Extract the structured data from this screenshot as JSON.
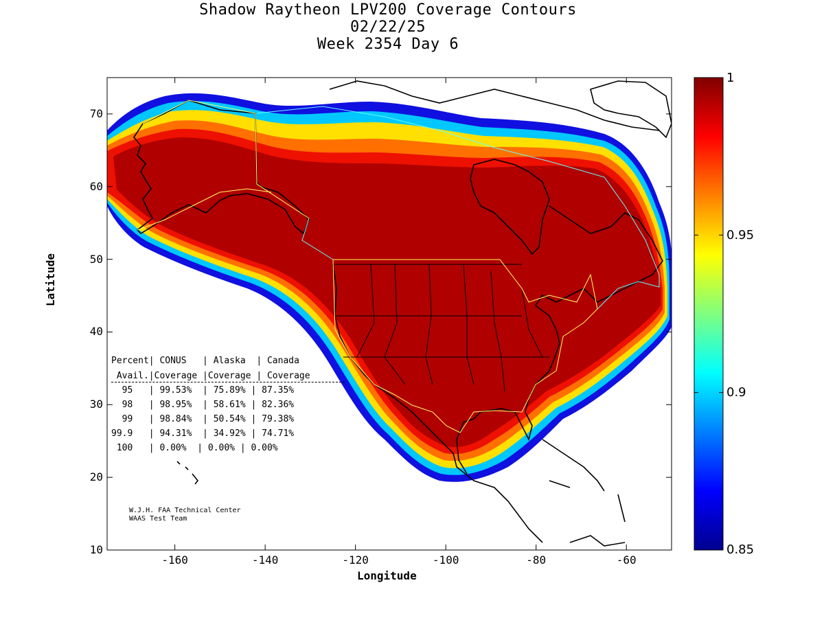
{
  "title": {
    "line1": "Shadow Raytheon LPV200 Coverage Contours",
    "line2": "02/22/25",
    "line3": "Week 2354 Day 6"
  },
  "axes": {
    "xlabel": "Longitude",
    "ylabel": "Latitude",
    "xlim": [
      -175,
      -50
    ],
    "ylim": [
      10,
      75
    ],
    "xticks": [
      "-160",
      "-140",
      "-120",
      "-100",
      "-80",
      "-60"
    ],
    "yticks": [
      "10",
      "20",
      "30",
      "40",
      "50",
      "60",
      "70"
    ]
  },
  "colorbar": {
    "range": [
      0.85,
      1
    ],
    "labels": [
      "1",
      "0.95",
      "0.9",
      "0.85"
    ],
    "colormap": "jet"
  },
  "table": {
    "header1": "Percent| CONUS   | Alaska  | Canada",
    "header2": " Avail.|Coverage |Coverage | Coverage",
    "rows": [
      "  95   | 99.53%  | 75.89% | 87.35%",
      "  98   | 98.95%  | 58.61% | 82.36%",
      "  99   | 98.84%  | 50.54% | 79.38%",
      "99.9   | 94.31%  | 34.92% | 74.71%",
      " 100   | 0.00%  | 0.00% | 0.00%"
    ]
  },
  "credit": {
    "line1": "W.J.H. FAA Technical Center",
    "line2": "WAAS Test Team"
  },
  "colors": {
    "full": "#b00000",
    "low": "#00008f"
  }
}
